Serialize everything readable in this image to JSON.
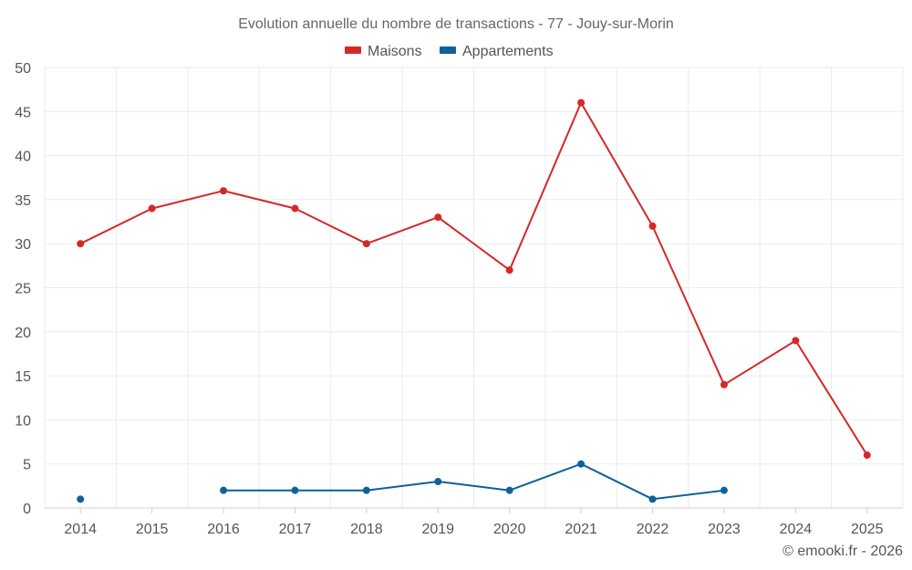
{
  "chart_data": {
    "type": "line",
    "title": "Evolution annuelle du nombre de transactions - 77 - Jouy-sur-Morin",
    "categories": [
      "2014",
      "2015",
      "2016",
      "2017",
      "2018",
      "2019",
      "2020",
      "2021",
      "2022",
      "2023",
      "2024",
      "2025"
    ],
    "ylim": [
      0,
      50
    ],
    "yticks": [
      0,
      5,
      10,
      15,
      20,
      25,
      30,
      35,
      40,
      45,
      50
    ],
    "grid": true,
    "legend_position": "top-center",
    "series": [
      {
        "name": "Maisons",
        "color": "#d62728",
        "values": [
          30,
          34,
          36,
          34,
          30,
          33,
          27,
          46,
          32,
          14,
          19,
          6
        ]
      },
      {
        "name": "Appartements",
        "color": "#0e6199",
        "values": [
          1,
          null,
          2,
          2,
          2,
          3,
          2,
          5,
          1,
          2,
          null,
          null
        ]
      }
    ]
  },
  "credit": "© emooki.fr - 2026"
}
